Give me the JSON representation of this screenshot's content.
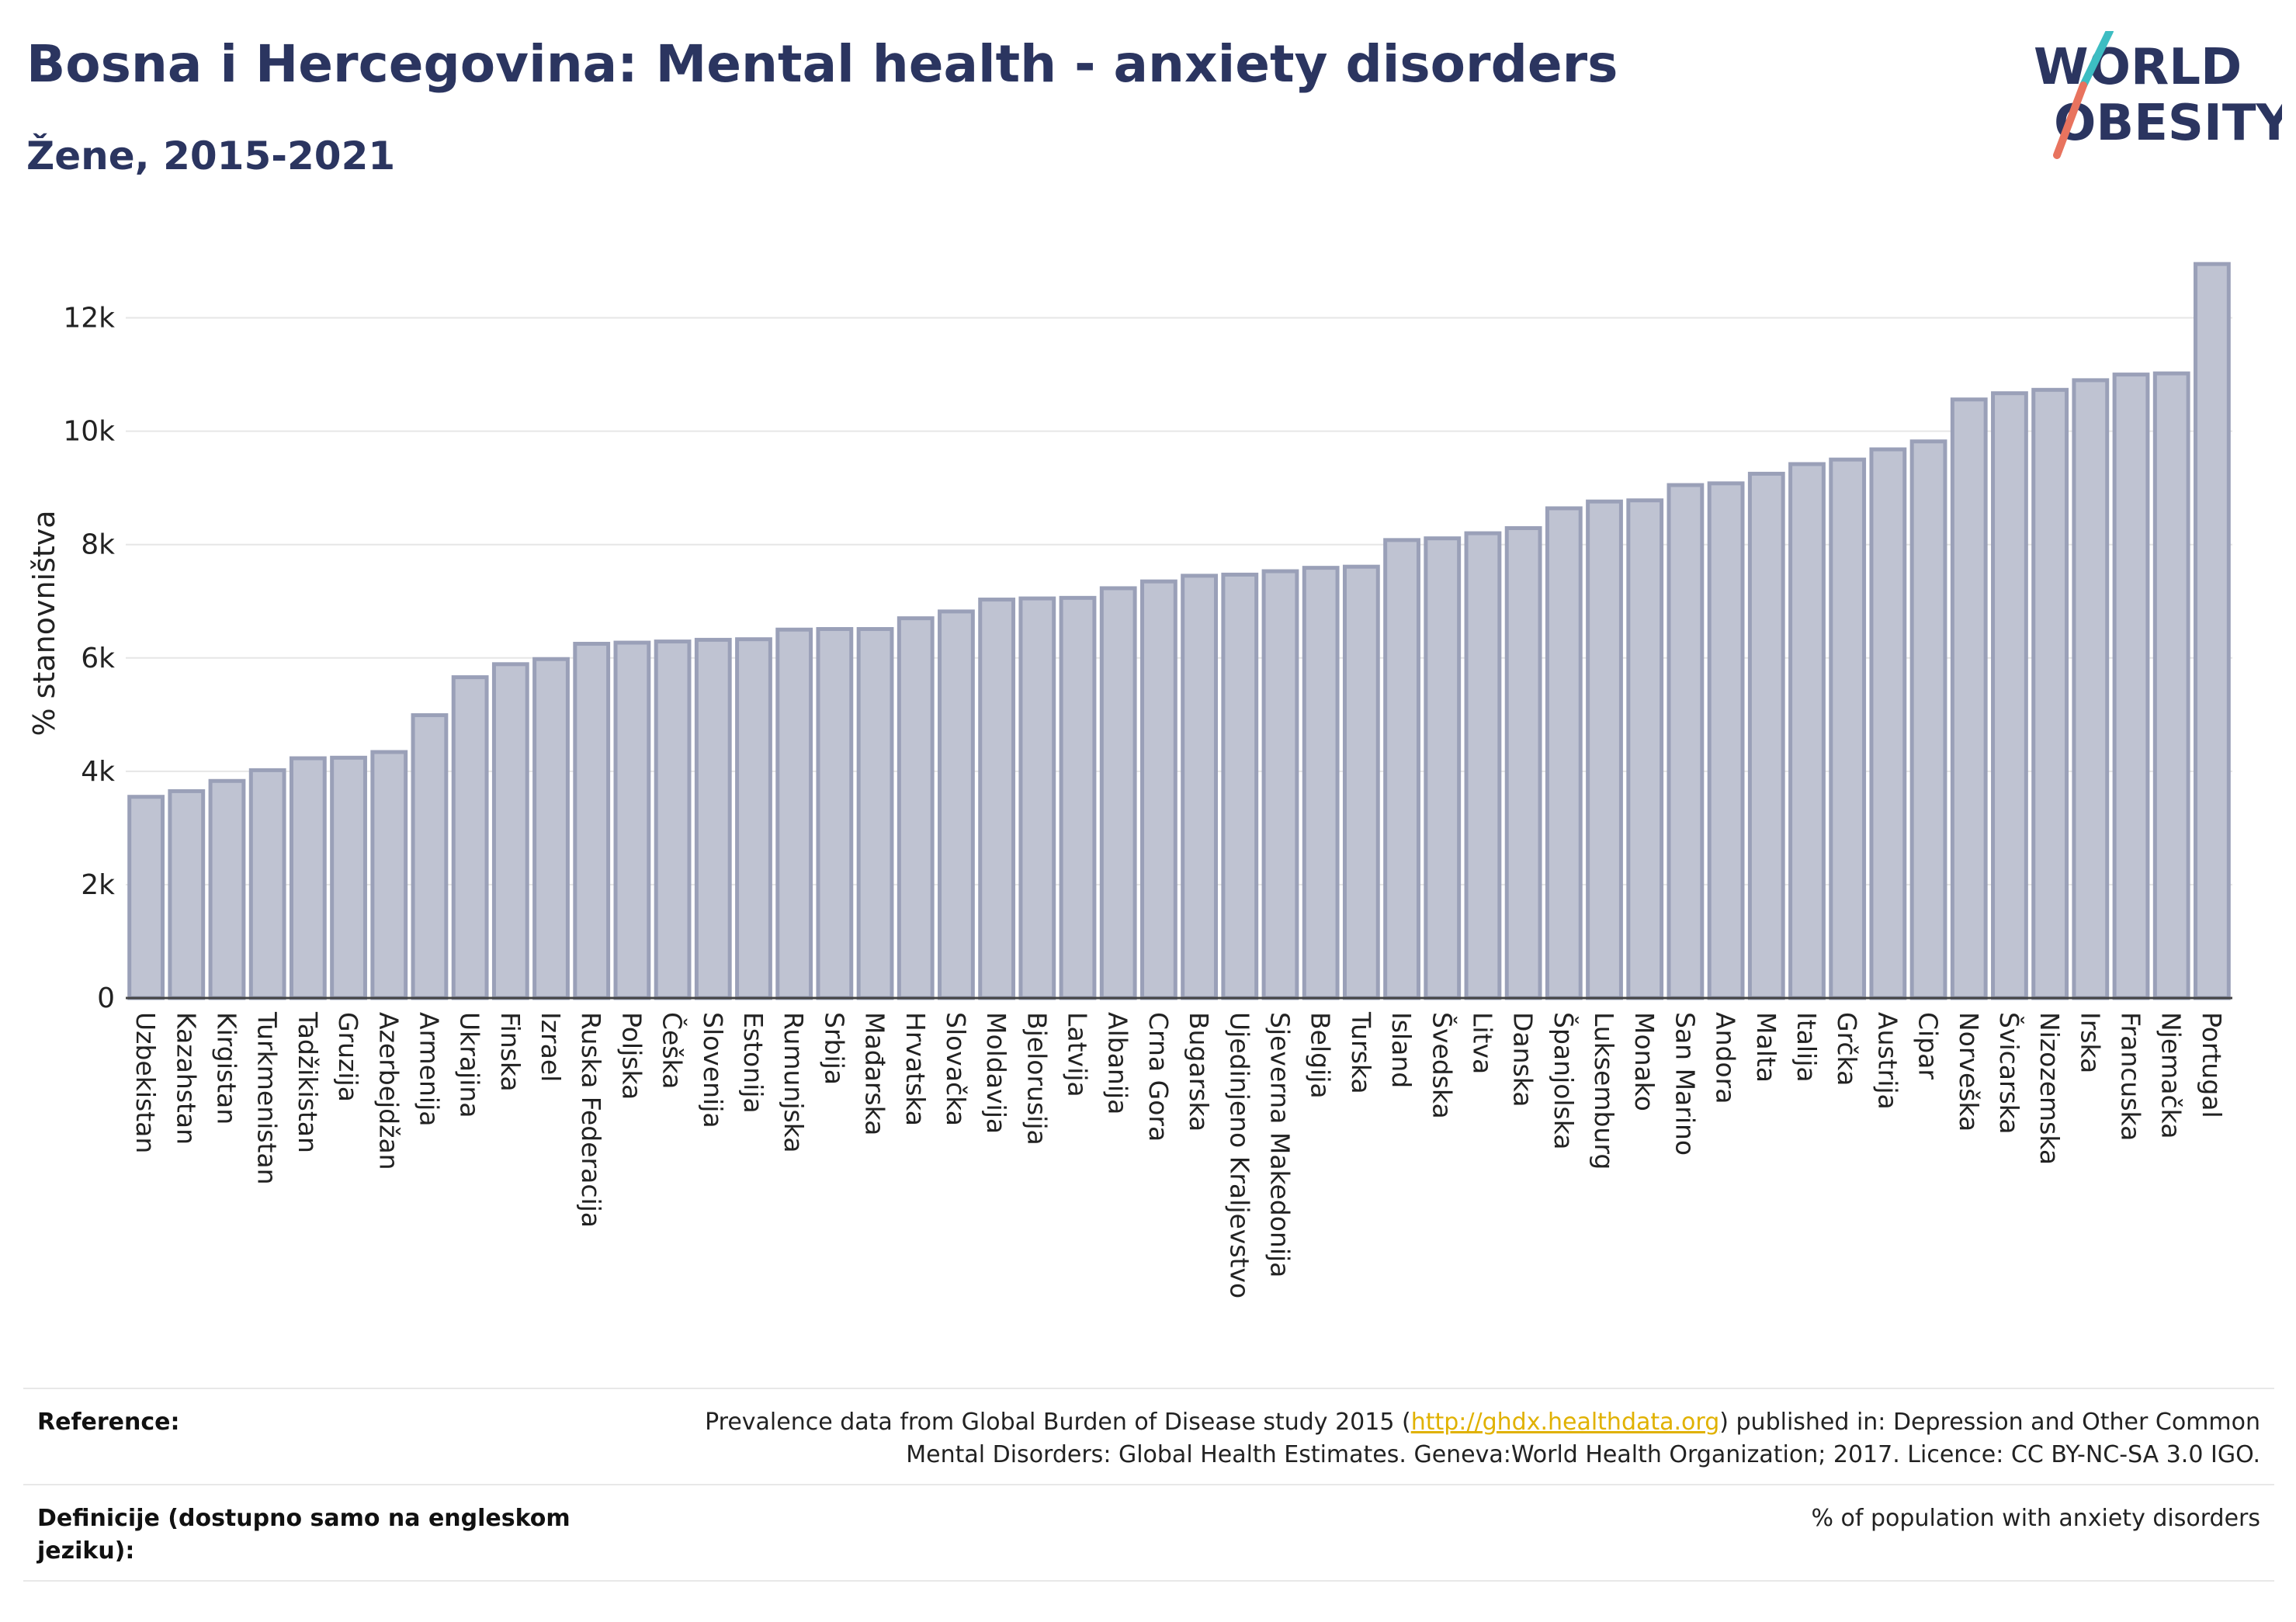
{
  "header": {
    "title": "Bosna i Hercegovina: Mental health - anxiety disorders",
    "subtitle": "Žene, 2015-2021",
    "logo_top": "WORLD",
    "logo_bottom": "OBESITY"
  },
  "colors": {
    "title": "#2b3560",
    "bar_fill": "#bfc3d2",
    "bar_stroke": "#9aa0b8",
    "logo_teal": "#3dbdc2",
    "logo_coral": "#e8735e",
    "link": "#e0b100"
  },
  "chart_data": {
    "type": "bar",
    "ylabel": "% stanovništva",
    "ylim": [
      0,
      13500
    ],
    "yticks": [
      0,
      2000,
      4000,
      6000,
      8000,
      10000,
      12000
    ],
    "ytick_labels": [
      "0",
      "2k",
      "4k",
      "6k",
      "8k",
      "10k",
      "12k"
    ],
    "grid": true,
    "categories": [
      "Uzbekistan",
      "Kazahstan",
      "Kirgistan",
      "Turkmenistan",
      "Tadžikistan",
      "Gruzija",
      "Azerbejdžan",
      "Armenija",
      "Ukrajina",
      "Finska",
      "Izrael",
      "Ruska Federacija",
      "Poljska",
      "Češka",
      "Slovenija",
      "Estonija",
      "Rumunjska",
      "Srbija",
      "Mađarska",
      "Hrvatska",
      "Slovačka",
      "Moldavija",
      "Bjelorusija",
      "Latvija",
      "Albanija",
      "Crna Gora",
      "Bugarska",
      "Ujedinjeno Kraljevstvo",
      "Sjeverna Makedonija",
      "Belgija",
      "Turska",
      "Island",
      "Švedska",
      "Litva",
      "Danska",
      "Španjolska",
      "Luksemburg",
      "Monako",
      "San Marino",
      "Andora",
      "Malta",
      "Italija",
      "Grčka",
      "Austrija",
      "Cipar",
      "Norveška",
      "Švicarska",
      "Nizozemska",
      "Irska",
      "Francuska",
      "Njemačka",
      "Portugal"
    ],
    "values": [
      3550,
      3650,
      3830,
      4020,
      4230,
      4240,
      4340,
      4990,
      5660,
      5890,
      5980,
      6250,
      6270,
      6290,
      6320,
      6330,
      6500,
      6510,
      6510,
      6700,
      6820,
      7030,
      7050,
      7060,
      7230,
      7350,
      7450,
      7470,
      7530,
      7590,
      7610,
      8080,
      8110,
      8200,
      8290,
      8640,
      8760,
      8780,
      9050,
      9080,
      9250,
      9420,
      9500,
      9680,
      9820,
      10560,
      10670,
      10730,
      10900,
      11000,
      11020,
      12950
    ]
  },
  "footer": {
    "reference_label": "Reference:",
    "reference_text_1": "Prevalence data from Global Burden of Disease study 2015 (",
    "reference_link": "http://ghdx.healthdata.org",
    "reference_text_2": ") published in: Depression and Other Common",
    "reference_text_3": "Mental Disorders: Global Health Estimates. Geneva:World Health Organization; 2017. Licence: CC BY-NC-SA 3.0 IGO.",
    "definition_label": "Definicije (dostupno samo na engleskom jeziku):",
    "definition_text": "% of population with anxiety disorders"
  }
}
